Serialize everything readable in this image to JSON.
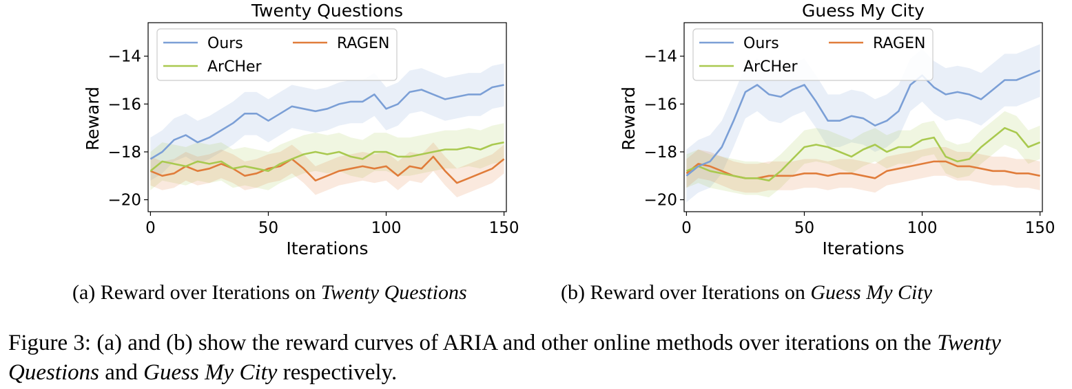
{
  "chart_data": [
    {
      "type": "line",
      "title": "Twenty Questions",
      "xlabel": "Iterations",
      "ylabel": "Reward",
      "xlim": [
        -1,
        151
      ],
      "ylim": [
        -20.5,
        -12.6
      ],
      "xticks": [
        0,
        50,
        100,
        150
      ],
      "yticks": [
        -20,
        -18,
        -16,
        -14
      ],
      "xtick_labels": [
        "0",
        "50",
        "100",
        "150"
      ],
      "ytick_labels": [
        "−20",
        "−18",
        "−16",
        "−14"
      ],
      "grid": false,
      "legend": "top-left",
      "shaded_band": "± std around each series",
      "x": [
        0,
        5,
        10,
        15,
        20,
        25,
        30,
        35,
        40,
        45,
        50,
        55,
        60,
        65,
        70,
        75,
        80,
        85,
        90,
        95,
        100,
        105,
        110,
        115,
        120,
        125,
        130,
        135,
        140,
        145,
        150
      ],
      "series": [
        {
          "name": "Ours",
          "color": "#7b9fd6",
          "band": 0.9,
          "values": [
            -18.3,
            -18.0,
            -17.5,
            -17.3,
            -17.6,
            -17.4,
            -17.1,
            -16.8,
            -16.4,
            -16.4,
            -16.7,
            -16.4,
            -16.1,
            -16.2,
            -16.3,
            -16.2,
            -16.0,
            -15.9,
            -15.9,
            -15.6,
            -16.2,
            -16.0,
            -15.5,
            -15.4,
            -15.6,
            -15.8,
            -15.7,
            -15.6,
            -15.6,
            -15.3,
            -15.2
          ]
        },
        {
          "name": "ArCHer",
          "color": "#a9c94f",
          "band": 0.8,
          "values": [
            -18.8,
            -18.4,
            -18.5,
            -18.6,
            -18.4,
            -18.5,
            -18.4,
            -18.7,
            -18.6,
            -18.7,
            -18.8,
            -18.5,
            -18.3,
            -18.1,
            -18.0,
            -18.1,
            -18.0,
            -18.2,
            -18.3,
            -18.0,
            -18.0,
            -18.2,
            -18.2,
            -18.1,
            -18.0,
            -17.9,
            -17.9,
            -17.8,
            -17.9,
            -17.7,
            -17.6
          ]
        },
        {
          "name": "RAGEN",
          "color": "#e07c3a",
          "band": 0.6,
          "values": [
            -18.8,
            -19.0,
            -18.9,
            -18.6,
            -18.8,
            -18.7,
            -18.5,
            -18.7,
            -19.0,
            -18.9,
            -18.7,
            -18.6,
            -18.3,
            -18.7,
            -19.2,
            -19.0,
            -18.8,
            -18.7,
            -18.6,
            -18.7,
            -18.6,
            -19.0,
            -18.6,
            -18.7,
            -18.2,
            -18.8,
            -19.3,
            -19.1,
            -18.9,
            -18.7,
            -18.3
          ]
        }
      ]
    },
    {
      "type": "line",
      "title": "Guess My City",
      "xlabel": "Iterations",
      "ylabel": "Reward",
      "xlim": [
        -1,
        151
      ],
      "ylim": [
        -20.5,
        -12.6
      ],
      "xticks": [
        0,
        50,
        100,
        150
      ],
      "yticks": [
        -20,
        -18,
        -16,
        -14
      ],
      "xtick_labels": [
        "0",
        "50",
        "100",
        "150"
      ],
      "ytick_labels": [
        "−20",
        "−18",
        "−16",
        "−14"
      ],
      "grid": false,
      "legend": "top-left",
      "shaded_band": "± std around each series",
      "x": [
        0,
        5,
        10,
        15,
        20,
        25,
        30,
        35,
        40,
        45,
        50,
        55,
        60,
        65,
        70,
        75,
        80,
        85,
        90,
        95,
        100,
        105,
        110,
        115,
        120,
        125,
        130,
        135,
        140,
        145,
        150
      ],
      "series": [
        {
          "name": "Ours",
          "color": "#7b9fd6",
          "band": 1.1,
          "values": [
            -19.0,
            -18.6,
            -18.4,
            -17.8,
            -16.7,
            -15.5,
            -15.2,
            -15.6,
            -15.7,
            -15.4,
            -15.2,
            -15.9,
            -16.7,
            -16.7,
            -16.5,
            -16.6,
            -16.9,
            -16.7,
            -16.3,
            -15.2,
            -14.8,
            -15.3,
            -15.6,
            -15.5,
            -15.6,
            -15.8,
            -15.4,
            -15.0,
            -15.0,
            -14.8,
            -14.6
          ]
        },
        {
          "name": "ArCHer",
          "color": "#a9c94f",
          "band": 0.7,
          "values": [
            -18.8,
            -18.6,
            -18.8,
            -18.9,
            -19.0,
            -19.1,
            -19.1,
            -19.2,
            -18.8,
            -18.3,
            -17.8,
            -17.7,
            -17.8,
            -18.0,
            -18.2,
            -17.9,
            -17.7,
            -18.0,
            -17.8,
            -17.8,
            -17.5,
            -17.4,
            -18.2,
            -18.4,
            -18.3,
            -17.8,
            -17.4,
            -17.0,
            -17.2,
            -17.8,
            -17.6
          ]
        },
        {
          "name": "RAGEN",
          "color": "#e07c3a",
          "band": 0.6,
          "values": [
            -18.9,
            -18.5,
            -18.6,
            -18.8,
            -19.0,
            -19.1,
            -19.1,
            -19.0,
            -19.0,
            -19.0,
            -18.9,
            -18.9,
            -19.0,
            -18.9,
            -18.9,
            -19.0,
            -19.1,
            -18.8,
            -18.7,
            -18.6,
            -18.5,
            -18.4,
            -18.4,
            -18.6,
            -18.6,
            -18.7,
            -18.8,
            -18.8,
            -18.9,
            -18.9,
            -19.0
          ]
        }
      ]
    }
  ],
  "captions": {
    "a_prefix": "(a) Reward over Iterations on ",
    "a_italic": "Twenty Questions",
    "b_prefix": "(b) Reward over Iterations on ",
    "b_italic": "Guess My City",
    "figure_1": "Figure 3: (a) and (b) show the reward curves of ARIA and other online methods over iterations on the ",
    "figure_italic_1": "Twenty Questions",
    "figure_2": " and ",
    "figure_italic_2": "Guess My City",
    "figure_3": " respectively."
  }
}
